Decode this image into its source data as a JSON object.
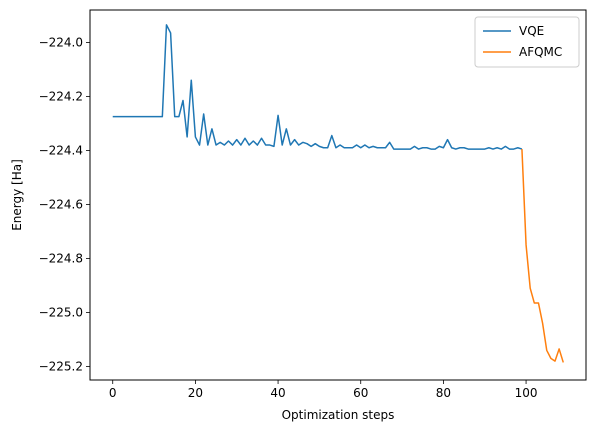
{
  "chart_data": {
    "type": "line",
    "title": "",
    "xlabel": "Optimization steps",
    "ylabel": "Energy [Ha]",
    "xlim": [
      -5.5,
      114.5
    ],
    "ylim": [
      -225.25,
      -223.88
    ],
    "xticks": [
      0,
      20,
      40,
      60,
      80,
      100
    ],
    "yticks": [
      -224.0,
      -224.2,
      -224.4,
      -224.6,
      -224.8,
      -225.0,
      -225.2
    ],
    "ytick_labels": [
      "−224.0",
      "−224.2",
      "−224.4",
      "−224.6",
      "−224.8",
      "−225.0",
      "−225.2"
    ],
    "xtick_labels": [
      "0",
      "20",
      "40",
      "60",
      "80",
      "100"
    ],
    "legend_position": "top-right",
    "series": [
      {
        "name": "VQE",
        "color": "#1f77b4",
        "x": [
          0,
          1,
          2,
          3,
          4,
          5,
          6,
          7,
          8,
          9,
          10,
          11,
          12,
          13,
          14,
          15,
          16,
          17,
          18,
          19,
          20,
          21,
          22,
          23,
          24,
          25,
          26,
          27,
          28,
          29,
          30,
          31,
          32,
          33,
          34,
          35,
          36,
          37,
          38,
          39,
          40,
          41,
          42,
          43,
          44,
          45,
          46,
          47,
          48,
          49,
          50,
          51,
          52,
          53,
          54,
          55,
          56,
          57,
          58,
          59,
          60,
          61,
          62,
          63,
          64,
          65,
          66,
          67,
          68,
          69,
          70,
          71,
          72,
          73,
          74,
          75,
          76,
          77,
          78,
          79,
          80,
          81,
          82,
          83,
          84,
          85,
          86,
          87,
          88,
          89,
          90,
          91,
          92,
          93,
          94,
          95,
          96,
          97,
          98,
          99
        ],
        "y": [
          -224.275,
          -224.275,
          -224.275,
          -224.275,
          -224.275,
          -224.275,
          -224.275,
          -224.275,
          -224.275,
          -224.275,
          -224.275,
          -224.275,
          -224.275,
          -223.935,
          -223.965,
          -224.275,
          -224.275,
          -224.215,
          -224.35,
          -224.14,
          -224.35,
          -224.38,
          -224.265,
          -224.38,
          -224.32,
          -224.38,
          -224.37,
          -224.38,
          -224.365,
          -224.38,
          -224.36,
          -224.38,
          -224.355,
          -224.38,
          -224.365,
          -224.38,
          -224.355,
          -224.38,
          -224.38,
          -224.385,
          -224.27,
          -224.38,
          -224.32,
          -224.38,
          -224.36,
          -224.38,
          -224.37,
          -224.375,
          -224.385,
          -224.375,
          -224.385,
          -224.39,
          -224.39,
          -224.345,
          -224.39,
          -224.38,
          -224.39,
          -224.39,
          -224.39,
          -224.38,
          -224.39,
          -224.38,
          -224.39,
          -224.385,
          -224.39,
          -224.39,
          -224.39,
          -224.37,
          -224.395,
          -224.395,
          -224.395,
          -224.395,
          -224.395,
          -224.385,
          -224.395,
          -224.39,
          -224.39,
          -224.395,
          -224.395,
          -224.385,
          -224.39,
          -224.36,
          -224.39,
          -224.395,
          -224.39,
          -224.39,
          -224.395,
          -224.395,
          -224.395,
          -224.395,
          -224.395,
          -224.39,
          -224.395,
          -224.39,
          -224.395,
          -224.385,
          -224.395,
          -224.395,
          -224.39,
          -224.395
        ]
      },
      {
        "name": "AFQMC",
        "color": "#ff7f0e",
        "x": [
          99,
          100,
          101,
          102,
          103,
          104,
          105,
          106,
          107,
          108,
          109
        ],
        "y": [
          -224.395,
          -224.75,
          -224.91,
          -224.965,
          -224.965,
          -225.04,
          -225.14,
          -225.17,
          -225.18,
          -225.135,
          -225.185
        ]
      }
    ]
  }
}
